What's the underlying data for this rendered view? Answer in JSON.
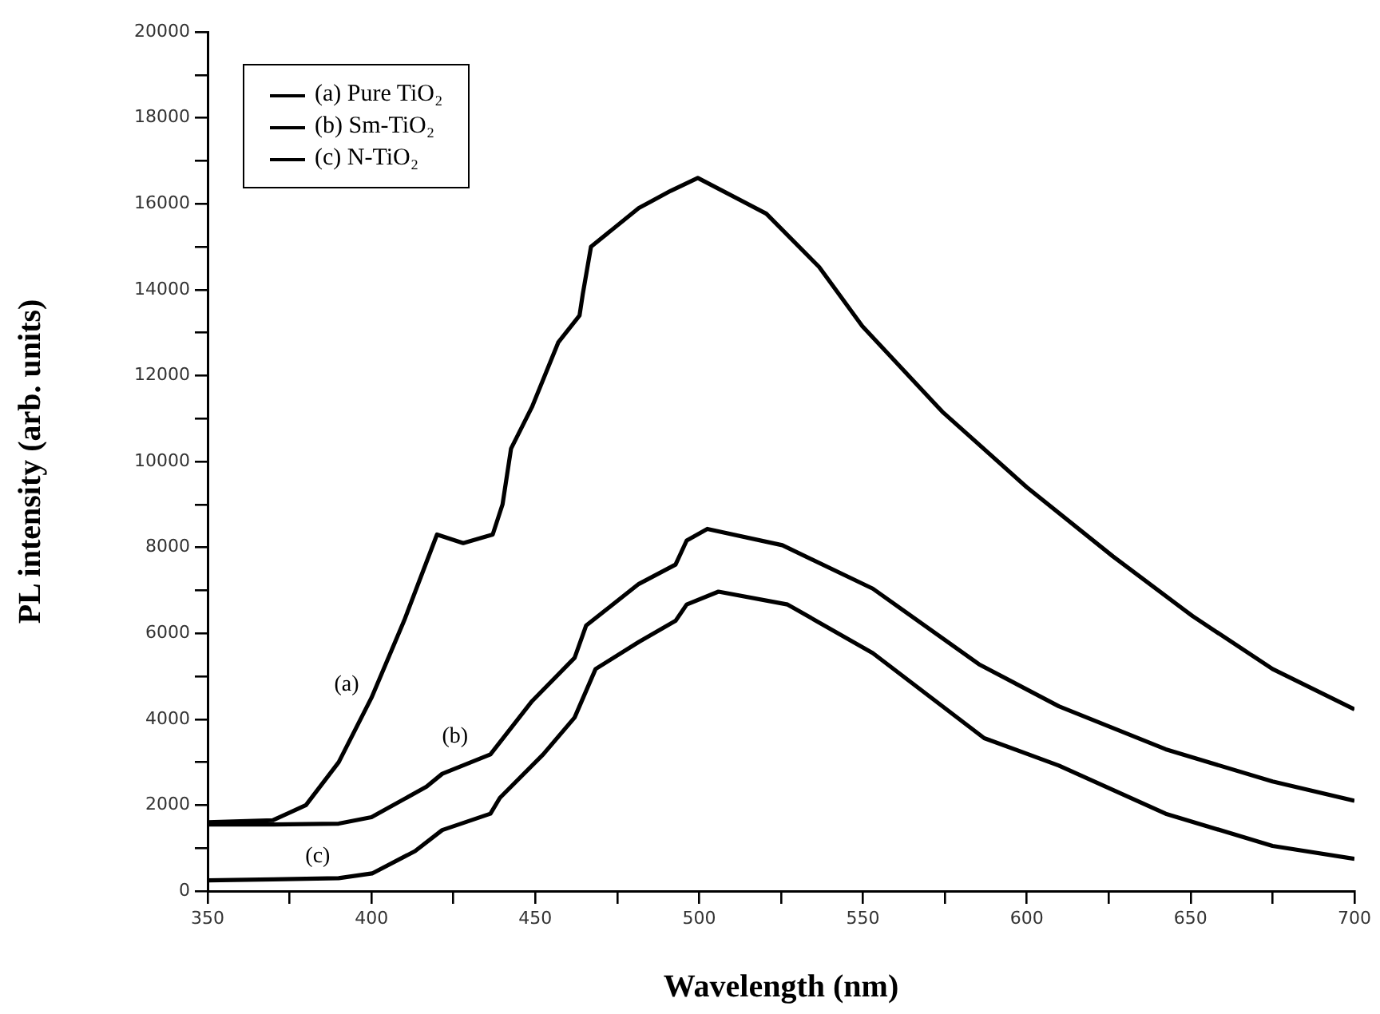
{
  "chart_data": {
    "type": "line",
    "xlabel": "Wavelength (nm)",
    "ylabel": "PL intensity (arb. units)",
    "xlim": [
      350,
      700
    ],
    "xticks": [
      350,
      {
        "value": 375,
        "label": null
      },
      400,
      {
        "value": 425,
        "label": null
      },
      450,
      {
        "value": 475,
        "label": null
      },
      500,
      {
        "value": 525,
        "label": null
      },
      550,
      {
        "value": 575,
        "label": null
      },
      600,
      {
        "value": 625,
        "label": null
      },
      650,
      {
        "value": 675,
        "label": null
      },
      700
    ],
    "ylim": [
      0,
      20000
    ],
    "yticks": [
      0,
      {
        "value": 1000,
        "label": null
      },
      2000,
      {
        "value": 3000,
        "label": null
      },
      4000,
      {
        "value": 5000,
        "label": null
      },
      6000,
      {
        "value": 7000,
        "label": null
      },
      8000,
      {
        "value": 9000,
        "label": null
      },
      10000,
      {
        "value": 11000,
        "label": null
      },
      12000,
      {
        "value": 13000,
        "label": null
      },
      14000,
      {
        "value": 15000,
        "label": null
      },
      16000,
      {
        "value": 17000,
        "label": null
      },
      18000,
      {
        "value": 19000,
        "label": null
      },
      20000
    ],
    "grid": false,
    "legend": "top left",
    "marker": "none",
    "line_style": "solid",
    "series": [
      {
        "name": "(a) Pure TiO₂",
        "color": "#000000",
        "x": [
          350,
          370,
          380,
          390,
          400,
          410,
          415,
          420,
          428,
          437,
          440,
          442.6,
          449,
          457,
          463.5,
          464.5,
          467,
          481.6,
          491.3,
          499.6,
          520.5,
          536.6,
          549.8,
          574.2,
          600,
          626.3,
          650.6,
          675,
          700
        ],
        "values": [
          1600,
          1650,
          2000,
          3000,
          4500,
          6300,
          7300,
          8300,
          8100,
          8300,
          9000,
          10300,
          11270,
          12770,
          13400,
          13900,
          15000,
          15900,
          16300,
          16600,
          15770,
          14530,
          13150,
          11160,
          9400,
          7790,
          6400,
          5170,
          4230
        ]
      },
      {
        "name": "(b) Sm-TiO₂",
        "color": "#000000",
        "x": [
          350,
          370,
          390,
          400,
          416.8,
          421.6,
          436.3,
          449,
          462,
          465.5,
          481.6,
          492.8,
          496.2,
          502.5,
          525.4,
          553,
          585.4,
          609.8,
          642.4,
          675,
          700
        ],
        "values": [
          1550,
          1550,
          1570,
          1720,
          2430,
          2730,
          3180,
          4420,
          5430,
          6180,
          7150,
          7600,
          8160,
          8430,
          8050,
          7040,
          5280,
          4300,
          3300,
          2550,
          2100
        ]
      },
      {
        "name": "(c) N-TiO₂",
        "color": "#000000",
        "x": [
          350,
          370,
          390,
          400.2,
          413.3,
          421.6,
          436.3,
          439.2,
          452.4,
          462,
          468.4,
          481.6,
          492.8,
          496.2,
          505.9,
          527,
          553,
          587,
          609.8,
          642.4,
          675,
          700
        ],
        "values": [
          250,
          270,
          300,
          410,
          930,
          1420,
          1800,
          2170,
          3180,
          4040,
          5170,
          5800,
          6290,
          6670,
          6970,
          6670,
          5540,
          3560,
          2920,
          1800,
          1050,
          750
        ]
      }
    ],
    "annotations": [
      {
        "text": "(a)",
        "x": 392.4,
        "y": 4800
      },
      {
        "text": "(b)",
        "x": 425.5,
        "y": 3600
      },
      {
        "text": "(c)",
        "x": 383.6,
        "y": 800
      }
    ]
  }
}
